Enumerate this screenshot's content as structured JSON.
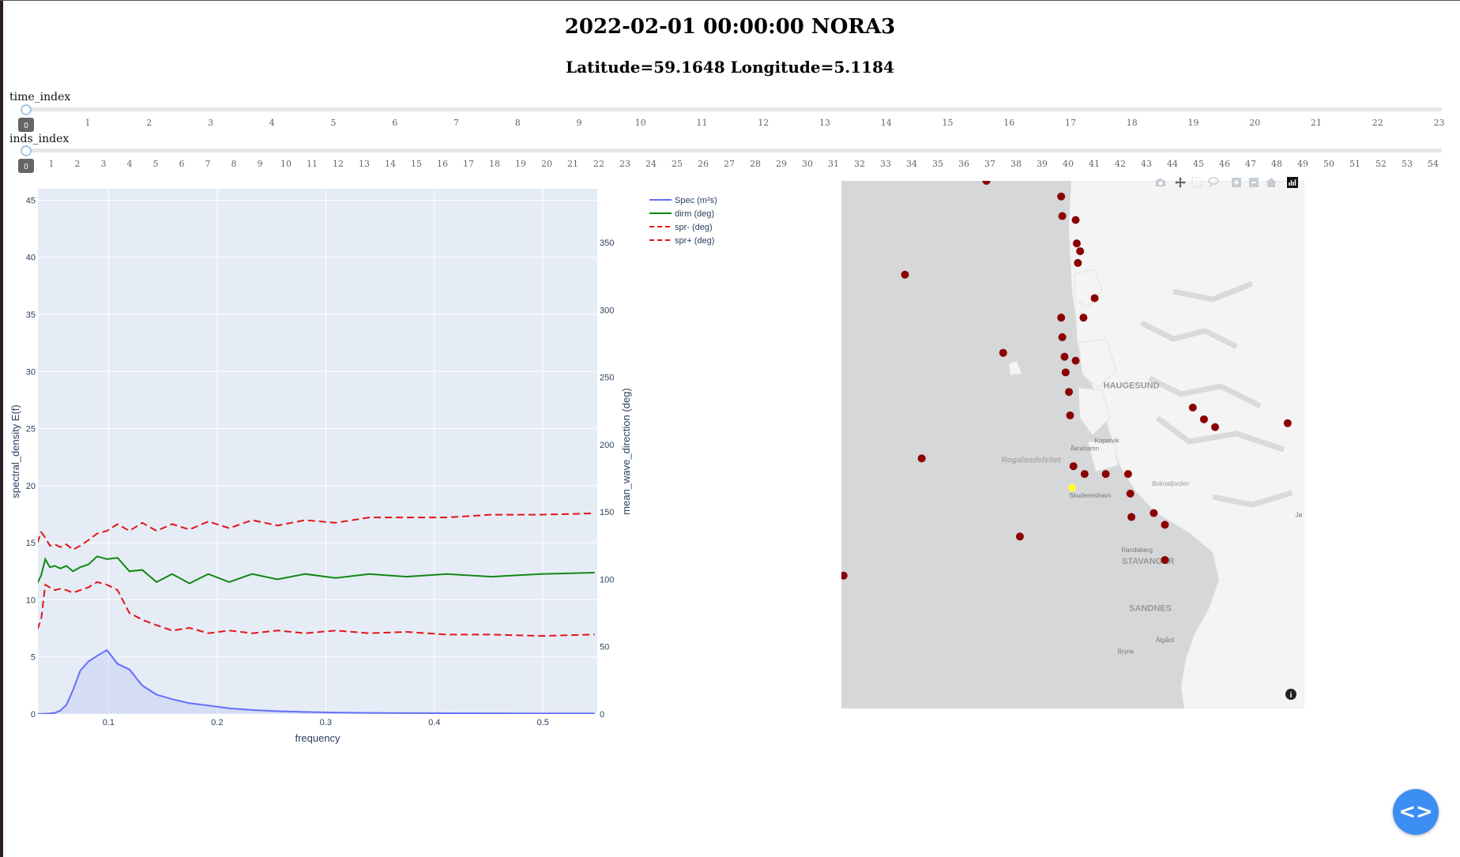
{
  "header": {
    "title": "2022-02-01 00:00:00 NORA3",
    "subtitle": "Latitude=59.1648 Longitude=5.1184"
  },
  "sliders": [
    {
      "label": "time_index",
      "value": "0",
      "max": 23
    },
    {
      "label": "inds_index",
      "value": "0",
      "max": 54
    }
  ],
  "chart_data": [
    {
      "type": "line",
      "xlabel": "frequency",
      "ylabel": "spectral_density  E(f)",
      "y2label": "mean_wave_direction  (deg)",
      "xlim": [
        0.035,
        0.55
      ],
      "ylim": [
        0,
        46
      ],
      "y2lim": [
        0,
        390
      ],
      "xticks": [
        0.1,
        0.2,
        0.3,
        0.4,
        0.5
      ],
      "xtick_labels": [
        "0.1",
        "0.2",
        "0.3",
        "0.4",
        "0.5"
      ],
      "yticks": [
        0,
        5,
        10,
        15,
        20,
        25,
        30,
        35,
        40,
        45
      ],
      "y2ticks": [
        0,
        50,
        100,
        150,
        200,
        250,
        300,
        350
      ],
      "x": [
        0.0345,
        0.038,
        0.0418,
        0.046,
        0.0506,
        0.0556,
        0.0612,
        0.0673,
        0.074,
        0.0814,
        0.0895,
        0.0985,
        0.1083,
        0.1192,
        0.1311,
        0.1442,
        0.1586,
        0.1745,
        0.1919,
        0.2111,
        0.2323,
        0.2555,
        0.281,
        0.3091,
        0.34,
        0.374,
        0.4114,
        0.4526,
        0.4979,
        0.5476
      ],
      "series": [
        {
          "name": "Spec (m²s)",
          "axis": "y",
          "color": "#636efa",
          "dash": "solid",
          "fill": true,
          "values": [
            0.02,
            0.02,
            0.03,
            0.05,
            0.1,
            0.3,
            0.8,
            2.1,
            3.8,
            4.6,
            5.1,
            5.6,
            4.4,
            3.9,
            2.5,
            1.7,
            1.3,
            0.95,
            0.75,
            0.5,
            0.35,
            0.25,
            0.18,
            0.13,
            0.1,
            0.08,
            0.07,
            0.06,
            0.05,
            0.05
          ]
        },
        {
          "name": "dirm (deg)",
          "axis": "y2",
          "color": "#118811",
          "dash": "solid",
          "values": [
            97,
            103,
            115,
            109,
            110,
            108,
            110,
            106,
            109,
            111,
            117,
            115,
            116,
            106,
            107,
            98,
            104,
            97,
            104,
            98,
            104,
            100,
            104,
            101,
            104,
            102,
            104,
            102,
            104,
            105
          ]
        },
        {
          "name": "spr- (deg)",
          "axis": "y2",
          "color": "#e41414",
          "dash": "dash",
          "values": [
            63,
            70,
            96,
            94,
            92,
            93,
            92,
            90,
            92,
            94,
            98,
            96,
            92,
            75,
            70,
            66,
            62,
            64,
            60,
            62,
            60,
            62,
            60,
            62,
            60,
            61,
            59,
            59,
            58,
            59
          ]
        },
        {
          "name": "spr+ (deg)",
          "axis": "y2",
          "color": "#e41414",
          "dash": "dash",
          "values": [
            127,
            135,
            131,
            125,
            126,
            124,
            126,
            122,
            125,
            129,
            134,
            136,
            141,
            136,
            142,
            136,
            141,
            137,
            143,
            138,
            144,
            140,
            144,
            142,
            146,
            146,
            146,
            148,
            148,
            149
          ]
        }
      ],
      "legend_position": "top-right"
    },
    {
      "type": "scatter",
      "subtype": "map",
      "lon_range": [
        3.05,
        7.2
      ],
      "lat_range": [
        58.6,
        59.95
      ],
      "labels": [
        {
          "text": "HAUGESUND",
          "lon": 5.65,
          "lat": 59.42,
          "size": 11,
          "color": "#999",
          "bold": true,
          "italic": false
        },
        {
          "text": "Kopervik",
          "lon": 5.43,
          "lat": 59.28,
          "size": 8,
          "color": "#777",
          "bold": false,
          "italic": false
        },
        {
          "text": "Åkrehamn",
          "lon": 5.23,
          "lat": 59.26,
          "size": 8,
          "color": "#777",
          "bold": false,
          "italic": false
        },
        {
          "text": "Rogalandsfeltet",
          "lon": 4.75,
          "lat": 59.23,
          "size": 10,
          "color": "#aaa",
          "bold": true,
          "italic": true
        },
        {
          "text": "Boknafjorden",
          "lon": 6.0,
          "lat": 59.17,
          "size": 8,
          "color": "#999",
          "bold": false,
          "italic": true
        },
        {
          "text": "Skudeneshavn",
          "lon": 5.28,
          "lat": 59.14,
          "size": 8,
          "color": "#777",
          "bold": false,
          "italic": false
        },
        {
          "text": "Randaberg",
          "lon": 5.7,
          "lat": 59.0,
          "size": 8,
          "color": "#777",
          "bold": false,
          "italic": false
        },
        {
          "text": "STAVANGER",
          "lon": 5.8,
          "lat": 58.97,
          "size": 11,
          "color": "#999",
          "bold": true,
          "italic": false
        },
        {
          "text": "SANDNES",
          "lon": 5.82,
          "lat": 58.85,
          "size": 11,
          "color": "#999",
          "bold": true,
          "italic": false
        },
        {
          "text": "Ålgård",
          "lon": 5.95,
          "lat": 58.77,
          "size": 8,
          "color": "#777",
          "bold": false,
          "italic": false
        },
        {
          "text": "Bryne",
          "lon": 5.6,
          "lat": 58.74,
          "size": 8,
          "color": "#777",
          "bold": false,
          "italic": false
        },
        {
          "text": "Jø",
          "lon": 7.15,
          "lat": 59.09,
          "size": 8,
          "color": "#777",
          "bold": false,
          "italic": false
        }
      ],
      "points": [
        {
          "lon": 4.35,
          "lat": 59.95
        },
        {
          "lon": 5.02,
          "lat": 59.91
        },
        {
          "lon": 5.03,
          "lat": 59.86
        },
        {
          "lon": 5.15,
          "lat": 59.85
        },
        {
          "lon": 5.16,
          "lat": 59.79
        },
        {
          "lon": 5.19,
          "lat": 59.77
        },
        {
          "lon": 5.17,
          "lat": 59.74
        },
        {
          "lon": 3.62,
          "lat": 59.71
        },
        {
          "lon": 5.32,
          "lat": 59.65
        },
        {
          "lon": 5.02,
          "lat": 59.6
        },
        {
          "lon": 5.22,
          "lat": 59.6
        },
        {
          "lon": 5.03,
          "lat": 59.55
        },
        {
          "lon": 4.5,
          "lat": 59.51
        },
        {
          "lon": 5.05,
          "lat": 59.5
        },
        {
          "lon": 5.15,
          "lat": 59.49
        },
        {
          "lon": 5.06,
          "lat": 59.46
        },
        {
          "lon": 5.09,
          "lat": 59.41
        },
        {
          "lon": 6.2,
          "lat": 59.37
        },
        {
          "lon": 5.1,
          "lat": 59.35
        },
        {
          "lon": 6.3,
          "lat": 59.34
        },
        {
          "lon": 6.4,
          "lat": 59.32
        },
        {
          "lon": 7.05,
          "lat": 59.33
        },
        {
          "lon": 3.77,
          "lat": 59.24
        },
        {
          "lon": 5.13,
          "lat": 59.22
        },
        {
          "lon": 5.23,
          "lat": 59.2
        },
        {
          "lon": 5.42,
          "lat": 59.2
        },
        {
          "lon": 5.62,
          "lat": 59.2
        },
        {
          "lon": 5.64,
          "lat": 59.15
        },
        {
          "lon": 5.65,
          "lat": 59.09
        },
        {
          "lon": 5.85,
          "lat": 59.1
        },
        {
          "lon": 5.95,
          "lat": 59.07
        },
        {
          "lon": 4.65,
          "lat": 59.04
        },
        {
          "lon": 5.95,
          "lat": 58.98
        },
        {
          "lon": 3.07,
          "lat": 58.94
        }
      ],
      "selected": {
        "lon": 5.1184,
        "lat": 59.1648
      },
      "point_color": "#8b0000",
      "selected_color": "#ffff33"
    }
  ],
  "map_toolbar": [
    "camera-icon",
    "pan-icon",
    "box-select-icon",
    "lasso-select-icon",
    "zoom-in-icon",
    "zoom-out-icon",
    "home-icon",
    "plotly-logo-icon"
  ]
}
